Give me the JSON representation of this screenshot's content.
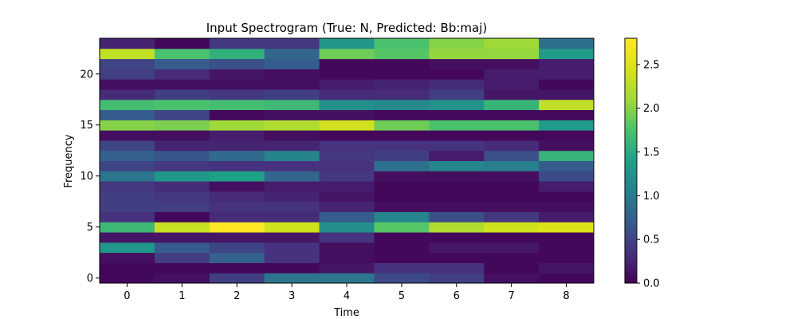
{
  "chart_data": {
    "type": "heatmap",
    "title": "Input Spectrogram (True: N, Predicted: Bb:maj)",
    "xlabel": "Time",
    "ylabel": "Frequency",
    "x_ticks": [
      "0",
      "1",
      "2",
      "3",
      "4",
      "5",
      "6",
      "7",
      "8"
    ],
    "y_ticks": [
      "0",
      "5",
      "10",
      "15",
      "20"
    ],
    "x_range": [
      -0.5,
      8.5
    ],
    "y_range": [
      -0.5,
      23.5
    ],
    "colorbar": {
      "min": 0.0,
      "max": 2.8,
      "ticks": [
        "0.0",
        "0.5",
        "1.0",
        "1.5",
        "2.0",
        "2.5"
      ],
      "colormap": "viridis"
    },
    "rows": 24,
    "cols": 9,
    "values": [
      [
        0.05,
        0.1,
        0.45,
        0.95,
        0.95,
        0.55,
        0.45,
        0.1,
        0.05
      ],
      [
        0.05,
        0.05,
        0.05,
        0.05,
        0.15,
        0.35,
        0.35,
        0.05,
        0.15
      ],
      [
        0.1,
        0.45,
        0.75,
        0.35,
        0.1,
        0.05,
        0.05,
        0.05,
        0.05
      ],
      [
        1.3,
        0.7,
        0.5,
        0.35,
        0.1,
        0.05,
        0.15,
        0.15,
        0.05
      ],
      [
        0.15,
        0.15,
        0.15,
        0.15,
        0.35,
        0.05,
        0.05,
        0.05,
        0.05
      ],
      [
        1.65,
        2.35,
        2.8,
        2.4,
        1.2,
        1.8,
        2.2,
        2.4,
        2.5
      ],
      [
        0.35,
        0.05,
        0.3,
        0.3,
        0.7,
        1.1,
        0.6,
        0.4,
        0.2
      ],
      [
        0.45,
        0.45,
        0.35,
        0.35,
        0.25,
        0.1,
        0.1,
        0.1,
        0.1
      ],
      [
        0.45,
        0.4,
        0.3,
        0.25,
        0.15,
        0.05,
        0.05,
        0.05,
        0.05
      ],
      [
        0.4,
        0.3,
        0.1,
        0.2,
        0.2,
        0.05,
        0.05,
        0.05,
        0.2
      ],
      [
        0.95,
        1.3,
        1.4,
        0.8,
        0.4,
        0.1,
        0.1,
        0.1,
        0.55
      ],
      [
        0.5,
        0.4,
        0.35,
        0.35,
        0.35,
        0.9,
        1.1,
        1.05,
        0.7
      ],
      [
        0.75,
        0.65,
        0.85,
        1.1,
        0.4,
        0.45,
        0.2,
        0.6,
        1.6
      ],
      [
        0.5,
        0.25,
        0.25,
        0.25,
        0.35,
        0.35,
        0.35,
        0.3,
        0.1
      ],
      [
        0.1,
        0.1,
        0.2,
        0.1,
        0.05,
        0.05,
        0.05,
        0.05,
        0.05
      ],
      [
        2.0,
        1.95,
        2.1,
        2.2,
        2.4,
        1.9,
        1.75,
        1.75,
        1.35
      ],
      [
        0.7,
        0.5,
        0.05,
        0.1,
        0.1,
        0.05,
        0.05,
        0.05,
        0.05
      ],
      [
        1.7,
        1.75,
        1.7,
        1.65,
        1.2,
        1.15,
        1.25,
        1.6,
        2.3
      ],
      [
        0.3,
        0.45,
        0.4,
        0.45,
        0.3,
        0.3,
        0.45,
        0.15,
        0.15
      ],
      [
        0.1,
        0.1,
        0.1,
        0.1,
        0.2,
        0.25,
        0.3,
        0.2,
        0.05
      ],
      [
        0.45,
        0.3,
        0.15,
        0.1,
        0.05,
        0.05,
        0.05,
        0.2,
        0.2
      ],
      [
        0.5,
        0.7,
        0.6,
        0.7,
        0.05,
        0.05,
        0.1,
        0.1,
        0.2
      ],
      [
        2.3,
        1.75,
        1.55,
        0.8,
        1.9,
        1.8,
        2.05,
        2.05,
        1.35
      ],
      [
        0.25,
        0.05,
        0.4,
        0.4,
        1.3,
        1.75,
        2.0,
        2.1,
        0.9
      ]
    ]
  }
}
